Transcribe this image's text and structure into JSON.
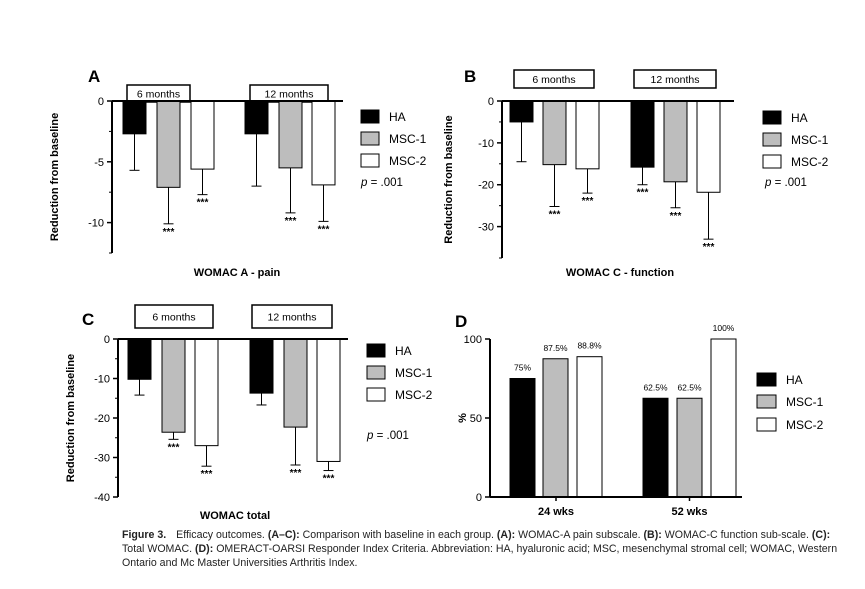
{
  "colors": {
    "HA": "#000000",
    "MSC-1": "#bdbdbd",
    "MSC-2": "#ffffff",
    "axis": "#000000"
  },
  "chart_data": [
    {
      "panel": "A",
      "type": "bar",
      "group_labels": [
        "6 months",
        "12 months"
      ],
      "series": [
        {
          "name": "HA",
          "values": [
            -2.7,
            -2.7
          ],
          "errors": [
            3.0,
            4.3
          ],
          "marks": [
            "",
            ""
          ]
        },
        {
          "name": "MSC-1",
          "values": [
            -7.1,
            -5.5
          ],
          "errors": [
            3.0,
            3.7
          ],
          "marks": [
            "***",
            "***"
          ]
        },
        {
          "name": "MSC-2",
          "values": [
            -5.6,
            -6.9
          ],
          "errors": [
            2.1,
            3.0
          ],
          "marks": [
            "***",
            "***"
          ]
        }
      ],
      "ylabel": "Reduction from baseline",
      "xlabel": "WOMAC A - pain",
      "ylim": [
        -12.5,
        0
      ],
      "yticks": [
        0,
        -5,
        -10
      ],
      "p_text": "= .001"
    },
    {
      "panel": "B",
      "type": "bar",
      "group_labels": [
        "6 months",
        "12 months"
      ],
      "series": [
        {
          "name": "HA",
          "values": [
            -5,
            -15.8
          ],
          "errors": [
            9.5,
            4.2
          ],
          "marks": [
            "",
            "***"
          ]
        },
        {
          "name": "MSC-1",
          "values": [
            -15.2,
            -19.3
          ],
          "errors": [
            10.0,
            6.2
          ],
          "marks": [
            "***",
            "***"
          ]
        },
        {
          "name": "MSC-2",
          "values": [
            -16.2,
            -21.8
          ],
          "errors": [
            5.8,
            11.2
          ],
          "marks": [
            "***",
            "***"
          ]
        }
      ],
      "ylabel": "Reduction from baseline",
      "xlabel": "WOMAC C - function",
      "ylim": [
        -37.5,
        0
      ],
      "yticks": [
        0,
        -10,
        -20,
        -30
      ],
      "p_text": "= .001"
    },
    {
      "panel": "C",
      "type": "bar",
      "group_labels": [
        "6 months",
        "12 months"
      ],
      "series": [
        {
          "name": "HA",
          "values": [
            -10.2,
            -13.7
          ],
          "errors": [
            4.0,
            3.0
          ],
          "marks": [
            "",
            ""
          ]
        },
        {
          "name": "MSC-1",
          "values": [
            -23.6,
            -22.3
          ],
          "errors": [
            1.8,
            9.6
          ],
          "marks": [
            "***",
            "***"
          ]
        },
        {
          "name": "MSC-2",
          "values": [
            -27.0,
            -31.0
          ],
          "errors": [
            5.2,
            2.3
          ],
          "marks": [
            "***",
            "***"
          ]
        }
      ],
      "ylabel": "Reduction from baseline",
      "xlabel": "WOMAC total",
      "ylim": [
        -40,
        0
      ],
      "yticks": [
        0,
        -10,
        -20,
        -30,
        -40
      ],
      "p_text": "= .001"
    },
    {
      "panel": "D",
      "type": "bar",
      "categories": [
        "24 wks",
        "52 wks"
      ],
      "series": [
        {
          "name": "HA",
          "values": [
            75,
            62.5
          ],
          "labels": [
            "75%",
            "62.5%"
          ]
        },
        {
          "name": "MSC-1",
          "values": [
            87.5,
            62.5
          ],
          "labels": [
            "87.5%",
            "62.5%"
          ]
        },
        {
          "name": "MSC-2",
          "values": [
            88.8,
            100
          ],
          "labels": [
            "88.8%",
            "100%"
          ]
        }
      ],
      "ylabel": "%",
      "ylim": [
        0,
        100
      ],
      "yticks": [
        0,
        50,
        100
      ]
    }
  ],
  "caption": {
    "fig": "Figure 3.",
    "title": "Efficacy outcomes.",
    "ac_label": "(A–C):",
    "ac_text": "Comparison with baseline in each group.",
    "a_label": "(A):",
    "a_text": "WOMAC-A pain subscale.",
    "b_label": "(B):",
    "b_text": "WOMAC-C function sub-scale.",
    "c_label": "(C):",
    "c_text": "Total WOMAC.",
    "d_label": "(D):",
    "d_text": "OMERACT-OARSI Responder Index Criteria. Abbreviation: HA, hyaluronic acid; MSC, mesenchymal stromal cell; WOMAC, Western Ontario and Mc Master Universities Arthritis Index."
  }
}
